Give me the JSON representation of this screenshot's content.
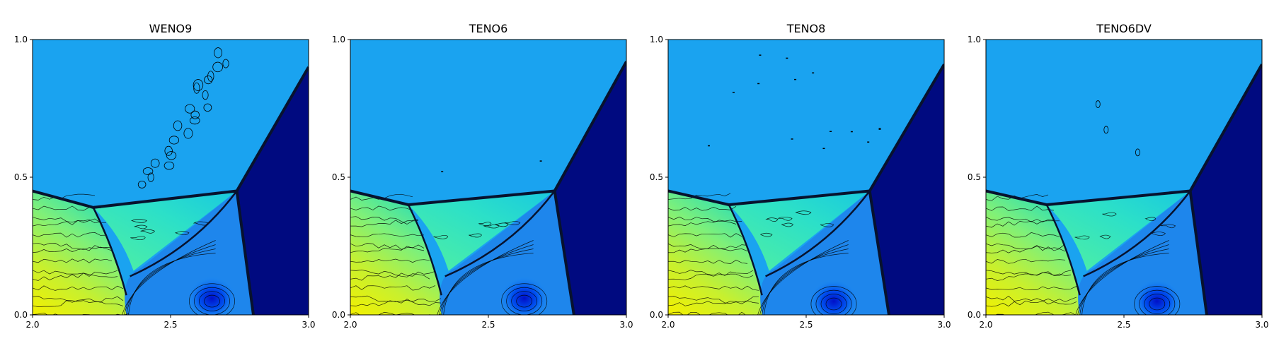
{
  "chart_data": [
    {
      "type": "heatmap",
      "title": "WENO9",
      "xlabel": "",
      "ylabel": "",
      "xlim": [
        2.0,
        3.0
      ],
      "ylim": [
        0.0,
        1.0
      ],
      "xticks": [
        2.0,
        2.5,
        3.0
      ],
      "yticks": [
        0.0,
        0.5,
        1.0
      ],
      "xtick_labels": [
        "2.0",
        "2.5",
        "3.0"
      ],
      "ytick_labels": [
        "0.0",
        "0.5",
        "1.0"
      ],
      "colormap": "jet",
      "contour_lines": true,
      "features": {
        "triple_point": [
          2.74,
          0.45
        ],
        "mach_stem_foot": [
          2.8,
          0.0
        ],
        "incident_shock_top": [
          3.0,
          0.9
        ],
        "slip_line_kink": [
          2.22,
          0.39
        ],
        "left_shock_start": [
          2.0,
          0.45
        ],
        "vortex_center": [
          2.65,
          0.06
        ],
        "noise_blobs": 22,
        "noise_type": "ellipses"
      }
    },
    {
      "type": "heatmap",
      "title": "TENO6",
      "xlabel": "",
      "ylabel": "",
      "xlim": [
        2.0,
        3.0
      ],
      "ylim": [
        0.0,
        1.0
      ],
      "xticks": [
        2.0,
        2.5,
        3.0
      ],
      "yticks": [
        0.0,
        0.5,
        1.0
      ],
      "xtick_labels": [
        "2.0",
        "2.5",
        "3.0"
      ],
      "ytick_labels": [
        "0.0",
        "0.5",
        "1.0"
      ],
      "colormap": "jet",
      "contour_lines": true,
      "features": {
        "triple_point": [
          2.74,
          0.45
        ],
        "mach_stem_foot": [
          2.81,
          0.0
        ],
        "incident_shock_top": [
          3.0,
          0.92
        ],
        "slip_line_kink": [
          2.21,
          0.4
        ],
        "left_shock_start": [
          2.0,
          0.45
        ],
        "vortex_center": [
          2.63,
          0.06
        ],
        "noise_blobs": 2,
        "noise_type": "specks"
      }
    },
    {
      "type": "heatmap",
      "title": "TENO8",
      "xlabel": "",
      "ylabel": "",
      "xlim": [
        2.0,
        3.0
      ],
      "ylim": [
        0.0,
        1.0
      ],
      "xticks": [
        2.0,
        2.5,
        3.0
      ],
      "yticks": [
        0.0,
        0.5,
        1.0
      ],
      "xtick_labels": [
        "2.0",
        "2.5",
        "3.0"
      ],
      "ytick_labels": [
        "0.0",
        "0.5",
        "1.0"
      ],
      "colormap": "jet",
      "contour_lines": true,
      "features": {
        "triple_point": [
          2.73,
          0.45
        ],
        "mach_stem_foot": [
          2.8,
          0.0
        ],
        "incident_shock_top": [
          3.0,
          0.91
        ],
        "slip_line_kink": [
          2.22,
          0.4
        ],
        "left_shock_start": [
          2.0,
          0.45
        ],
        "vortex_center": [
          2.6,
          0.05
        ],
        "noise_blobs": 14,
        "noise_type": "specks"
      }
    },
    {
      "type": "heatmap",
      "title": "TENO6DV",
      "xlabel": "",
      "ylabel": "",
      "xlim": [
        2.0,
        3.0
      ],
      "ylim": [
        0.0,
        1.0
      ],
      "xticks": [
        2.0,
        2.5,
        3.0
      ],
      "yticks": [
        0.0,
        0.5,
        1.0
      ],
      "xtick_labels": [
        "2.0",
        "2.5",
        "3.0"
      ],
      "ytick_labels": [
        "0.0",
        "0.5",
        "1.0"
      ],
      "colormap": "jet",
      "contour_lines": true,
      "features": {
        "triple_point": [
          2.74,
          0.45
        ],
        "mach_stem_foot": [
          2.8,
          0.0
        ],
        "incident_shock_top": [
          3.0,
          0.91
        ],
        "slip_line_kink": [
          2.22,
          0.4
        ],
        "left_shock_start": [
          2.0,
          0.45
        ],
        "vortex_center": [
          2.62,
          0.05
        ],
        "noise_blobs": 3,
        "noise_type": "ellipses"
      }
    }
  ]
}
